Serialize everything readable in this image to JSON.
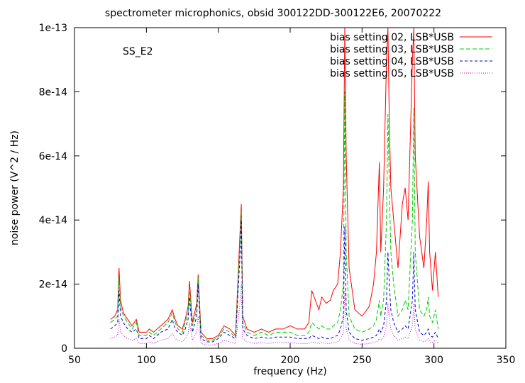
{
  "chart_data": {
    "type": "line",
    "title": "spectrometer microphonics, obsid 300122DD-300122E6, 20070222",
    "annotation": "SS_E2",
    "xlabel": "frequency (Hz)",
    "ylabel": "noise power (V^2 / Hz)",
    "xlim": [
      50,
      350
    ],
    "ylim": [
      0,
      1e-13
    ],
    "x_ticks": [
      50,
      100,
      150,
      200,
      250,
      300,
      350
    ],
    "x_tick_labels": [
      "50",
      "100",
      "150",
      "200",
      "250",
      "300",
      "350"
    ],
    "y_ticks": [
      0,
      2e-14,
      4e-14,
      6e-14,
      8e-14,
      1e-13
    ],
    "y_tick_labels": [
      "0",
      "2e-14",
      "4e-14",
      "6e-14",
      "8e-14",
      "1e-13"
    ],
    "grid": false,
    "legend_position": "top-right",
    "x_units": "Hz",
    "series": [
      {
        "name": "bias setting 02, LSB*USB",
        "color": "#ff0000",
        "dash": "solid",
        "x": [
          75,
          78,
          80,
          81,
          82,
          84,
          87,
          90,
          93,
          95,
          100,
          102,
          105,
          110,
          115,
          118,
          120,
          122,
          125,
          127,
          129,
          130,
          132,
          135,
          136,
          138,
          142,
          146,
          150,
          154,
          158,
          162,
          165,
          166,
          167,
          170,
          175,
          180,
          185,
          190,
          195,
          200,
          205,
          210,
          213,
          215,
          220,
          222,
          225,
          228,
          230,
          233,
          235,
          237,
          238,
          239,
          241,
          245,
          250,
          255,
          258,
          260,
          262,
          263,
          265,
          267,
          268,
          269,
          270,
          272,
          275,
          278,
          280,
          282,
          285,
          286,
          287,
          290,
          293,
          295,
          296,
          297,
          299,
          301,
          303
        ],
        "y": [
          9e-15,
          1e-14,
          1.2e-14,
          2.5e-14,
          1.5e-14,
          1.1e-14,
          9e-15,
          7e-15,
          9e-15,
          5e-15,
          5e-15,
          6e-15,
          5e-15,
          7e-15,
          9e-15,
          1.2e-14,
          9e-15,
          7e-15,
          6e-15,
          9e-15,
          1.3e-14,
          2.1e-14,
          8e-15,
          1.4e-14,
          2.3e-14,
          5e-15,
          3e-15,
          3e-15,
          4e-15,
          7e-15,
          6e-15,
          4e-15,
          3.5e-14,
          4.5e-14,
          1e-14,
          6e-15,
          5e-15,
          6e-15,
          5e-15,
          6e-15,
          6e-15,
          7e-15,
          6e-15,
          6e-15,
          8e-15,
          1.8e-14,
          1.2e-14,
          1.6e-14,
          1.4e-14,
          1.5e-14,
          1.8e-14,
          2e-14,
          3e-14,
          5e-14,
          1e-13,
          6e-14,
          2.5e-14,
          1.2e-14,
          1e-14,
          1.3e-14,
          2e-14,
          3e-14,
          5.8e-14,
          3e-14,
          5e-14,
          9e-14,
          1e-13,
          7e-14,
          5e-14,
          4e-14,
          2.5e-14,
          4.5e-14,
          5e-14,
          4e-14,
          9e-14,
          1e-13,
          6e-14,
          3.5e-14,
          2.5e-14,
          4e-14,
          5.2e-14,
          3e-14,
          1.8e-14,
          3e-14,
          1.6e-14
        ]
      },
      {
        "name": "bias setting 03, LSB*USB",
        "color": "#00cc00",
        "dash": "6,3",
        "x": [
          75,
          78,
          80,
          81,
          82,
          84,
          87,
          90,
          93,
          95,
          100,
          102,
          105,
          110,
          115,
          118,
          120,
          122,
          125,
          127,
          129,
          130,
          132,
          135,
          136,
          138,
          142,
          146,
          150,
          154,
          158,
          162,
          165,
          166,
          167,
          170,
          175,
          180,
          185,
          190,
          195,
          200,
          205,
          210,
          213,
          215,
          220,
          222,
          225,
          228,
          230,
          233,
          235,
          237,
          238,
          239,
          241,
          245,
          250,
          255,
          258,
          260,
          262,
          263,
          265,
          267,
          268,
          269,
          270,
          272,
          275,
          278,
          280,
          282,
          285,
          286,
          287,
          290,
          293,
          295,
          296,
          297,
          299,
          301,
          303
        ],
        "y": [
          8e-15,
          9e-15,
          1e-14,
          2.2e-14,
          1.3e-14,
          1e-14,
          8e-15,
          6e-15,
          8e-15,
          4e-15,
          4e-15,
          5e-15,
          4e-15,
          6e-15,
          8e-15,
          1.1e-14,
          8e-15,
          6e-15,
          5e-15,
          8e-15,
          1.1e-14,
          1.9e-14,
          7e-15,
          1.2e-14,
          2.2e-14,
          4e-15,
          2.5e-15,
          2.5e-15,
          3.5e-15,
          6e-15,
          5e-15,
          3.5e-15,
          3.2e-14,
          4.3e-14,
          8e-15,
          5e-15,
          4e-15,
          5e-15,
          4e-15,
          5e-15,
          5e-15,
          5e-15,
          4e-15,
          4e-15,
          5e-15,
          8e-15,
          6e-15,
          7e-15,
          6e-15,
          6e-15,
          7e-15,
          8e-15,
          1.2e-14,
          2e-14,
          8e-14,
          3e-14,
          1e-14,
          6e-15,
          5e-15,
          6e-15,
          7e-15,
          9e-15,
          1.5e-14,
          1e-14,
          1.5e-14,
          4e-14,
          7.3e-14,
          5e-14,
          3e-14,
          2e-14,
          1e-14,
          1.2e-14,
          1.5e-14,
          1.2e-14,
          4e-14,
          7.5e-14,
          3e-14,
          1.2e-14,
          1e-14,
          1.2e-14,
          1.6e-14,
          1e-14,
          8e-15,
          1.2e-14,
          6e-15
        ]
      },
      {
        "name": "bias setting 04, LSB*USB",
        "color": "#0000cc",
        "dash": "4,3",
        "x": [
          75,
          78,
          80,
          81,
          82,
          84,
          87,
          90,
          93,
          95,
          100,
          102,
          105,
          110,
          115,
          118,
          120,
          122,
          125,
          127,
          129,
          130,
          132,
          135,
          136,
          138,
          142,
          146,
          150,
          154,
          158,
          162,
          165,
          166,
          167,
          170,
          175,
          180,
          185,
          190,
          195,
          200,
          205,
          210,
          213,
          215,
          220,
          222,
          225,
          228,
          230,
          233,
          235,
          237,
          238,
          239,
          241,
          245,
          250,
          255,
          258,
          260,
          262,
          263,
          265,
          267,
          268,
          269,
          270,
          272,
          275,
          278,
          280,
          282,
          285,
          286,
          287,
          290,
          293,
          295,
          296,
          297,
          299,
          301,
          303
        ],
        "y": [
          6e-15,
          7e-15,
          8e-15,
          1.8e-14,
          1e-14,
          8e-15,
          6e-15,
          5e-15,
          6e-15,
          3e-15,
          3e-15,
          4e-15,
          3e-15,
          5e-15,
          6e-15,
          9e-15,
          6e-15,
          5e-15,
          4e-15,
          6e-15,
          9e-15,
          1.6e-14,
          5e-15,
          1e-14,
          2e-14,
          3e-15,
          2e-15,
          2e-15,
          3e-15,
          5e-15,
          4e-15,
          3e-15,
          2.8e-14,
          4e-14,
          6e-15,
          4e-15,
          3e-15,
          3.5e-15,
          3e-15,
          3.5e-15,
          3.5e-15,
          3.5e-15,
          3e-15,
          3e-15,
          3e-15,
          4e-15,
          3e-15,
          3.5e-15,
          3e-15,
          3e-15,
          3.5e-15,
          4e-15,
          6e-15,
          1e-14,
          3.8e-14,
          1.2e-14,
          5e-15,
          3e-15,
          2.5e-15,
          3e-15,
          3.5e-15,
          4e-15,
          6e-15,
          5e-15,
          7e-15,
          1.5e-14,
          3e-14,
          2e-14,
          1.2e-14,
          8e-15,
          5e-15,
          6e-15,
          7e-15,
          6e-15,
          1.5e-14,
          3e-14,
          1.2e-14,
          5e-15,
          4e-15,
          5e-15,
          6e-15,
          4e-15,
          3.5e-15,
          5e-15,
          3e-15
        ]
      },
      {
        "name": "bias setting 05, LSB*USB",
        "color": "#cc00cc",
        "dash": "1,2",
        "x": [
          75,
          78,
          80,
          81,
          82,
          84,
          87,
          90,
          93,
          95,
          100,
          102,
          105,
          110,
          115,
          118,
          120,
          122,
          125,
          127,
          129,
          130,
          132,
          135,
          136,
          138,
          142,
          146,
          150,
          154,
          158,
          162,
          165,
          166,
          167,
          170,
          175,
          180,
          185,
          190,
          195,
          200,
          205,
          210,
          213,
          215,
          220,
          222,
          225,
          228,
          230,
          233,
          235,
          237,
          238,
          239,
          241,
          245,
          250,
          255,
          258,
          260,
          262,
          263,
          265,
          267,
          268,
          269,
          270,
          272,
          275,
          278,
          280,
          282,
          285,
          286,
          287,
          290,
          293,
          295,
          296,
          297,
          299,
          301,
          303
        ],
        "y": [
          3e-15,
          3.5e-15,
          4e-15,
          9e-15,
          5e-15,
          4e-15,
          3e-15,
          2.5e-15,
          3e-15,
          1.5e-15,
          1.5e-15,
          2e-15,
          1.5e-15,
          2.5e-15,
          3e-15,
          4.5e-15,
          3e-15,
          2.5e-15,
          2e-15,
          3e-15,
          4.5e-15,
          8e-15,
          2.5e-15,
          5e-15,
          1e-14,
          1.5e-15,
          1e-15,
          1e-15,
          1.5e-15,
          2.5e-15,
          2e-15,
          1.5e-15,
          1.4e-14,
          2e-14,
          3e-15,
          2e-15,
          1.5e-15,
          1.8e-15,
          1.5e-15,
          1.8e-15,
          1.8e-15,
          1.8e-15,
          1.5e-15,
          1.5e-15,
          1.5e-15,
          2e-15,
          1.5e-15,
          1.8e-15,
          1.5e-15,
          1.5e-15,
          1.8e-15,
          2e-15,
          3e-15,
          5e-15,
          1.8e-14,
          6e-15,
          2.5e-15,
          1.5e-15,
          1.2e-15,
          1.5e-15,
          1.8e-15,
          2e-15,
          3e-15,
          2.5e-15,
          3.5e-15,
          7e-15,
          1.4e-14,
          9e-15,
          6e-15,
          4e-15,
          2.5e-15,
          3e-15,
          3.5e-15,
          3e-15,
          7e-15,
          1.4e-14,
          6e-15,
          2.5e-15,
          2e-15,
          2.5e-15,
          3e-15,
          2e-15,
          1.8e-15,
          2.5e-15,
          1.5e-15
        ]
      }
    ]
  }
}
